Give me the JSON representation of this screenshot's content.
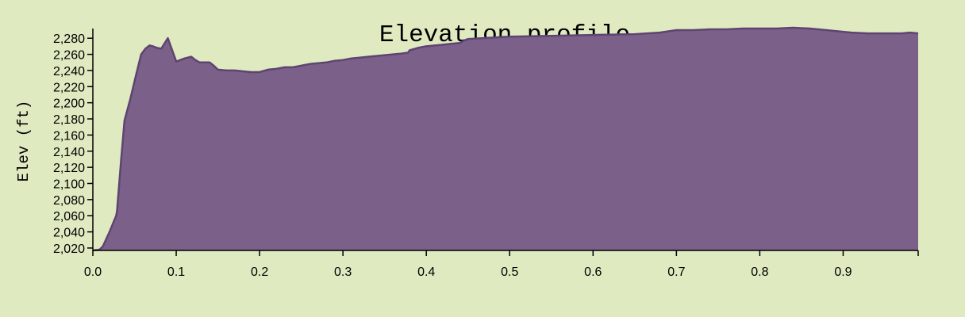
{
  "chart_data": {
    "type": "area",
    "title": "Elevation profile",
    "xlabel": "",
    "ylabel": "Elev (ft)",
    "xlim": [
      0,
      0.99
    ],
    "ylim": [
      2017,
      2292
    ],
    "x_ticks": [
      0.0,
      0.1,
      0.2,
      0.3,
      0.4,
      0.5,
      0.6,
      0.7,
      0.8,
      0.9
    ],
    "x_tick_labels": [
      "0.0",
      "0.1",
      "0.2",
      "0.3",
      "0.4",
      "0.5",
      "0.6",
      "0.7",
      "0.8",
      "0.9"
    ],
    "y_ticks": [
      2020,
      2040,
      2060,
      2080,
      2100,
      2120,
      2140,
      2160,
      2180,
      2200,
      2220,
      2240,
      2260,
      2280
    ],
    "y_tick_labels": [
      "2,020",
      "2,040",
      "2,060",
      "2,080",
      "2,100",
      "2,120",
      "2,140",
      "2,160",
      "2,180",
      "2,200",
      "2,220",
      "2,240",
      "2,260",
      "2,280"
    ],
    "grid": false,
    "fill_color": "#7b6189",
    "line_color": "#5e4470",
    "background": "#dfeac1",
    "series": [
      {
        "x": [
          0.0,
          0.008,
          0.012,
          0.02,
          0.028,
          0.029,
          0.034,
          0.038,
          0.045,
          0.052,
          0.058,
          0.063,
          0.068,
          0.072,
          0.077,
          0.082,
          0.09,
          0.1,
          0.105,
          0.11,
          0.118,
          0.123,
          0.128,
          0.133,
          0.14,
          0.145,
          0.15,
          0.16,
          0.17,
          0.18,
          0.19,
          0.2,
          0.21,
          0.22,
          0.23,
          0.24,
          0.25,
          0.26,
          0.27,
          0.28,
          0.29,
          0.3,
          0.31,
          0.32,
          0.33,
          0.34,
          0.35,
          0.36,
          0.37,
          0.378,
          0.38,
          0.39,
          0.4,
          0.41,
          0.42,
          0.43,
          0.44,
          0.445,
          0.45,
          0.5,
          0.55,
          0.6,
          0.65,
          0.68,
          0.7,
          0.72,
          0.74,
          0.76,
          0.78,
          0.8,
          0.82,
          0.84,
          0.86,
          0.88,
          0.9,
          0.91,
          0.93,
          0.95,
          0.97,
          0.98,
          0.99
        ],
        "y": [
          2017,
          2018,
          2022,
          2040,
          2060,
          2066,
          2130,
          2178,
          2205,
          2235,
          2260,
          2267,
          2271,
          2270,
          2268,
          2267,
          2280,
          2251,
          2253,
          2255,
          2257,
          2253,
          2250,
          2250,
          2250,
          2246,
          2241,
          2240,
          2240,
          2239,
          2238,
          2238,
          2241,
          2242,
          2244,
          2244,
          2246,
          2248,
          2249,
          2250,
          2252,
          2253,
          2255,
          2256,
          2257,
          2258,
          2259,
          2260,
          2261,
          2262,
          2265,
          2268,
          2270,
          2271,
          2272,
          2273,
          2274,
          2277,
          2279,
          2282,
          2283,
          2284,
          2285,
          2287,
          2290,
          2290,
          2291,
          2291,
          2292,
          2292,
          2292,
          2293,
          2292,
          2290,
          2288,
          2287,
          2286,
          2286,
          2286,
          2287,
          2286
        ]
      }
    ]
  }
}
